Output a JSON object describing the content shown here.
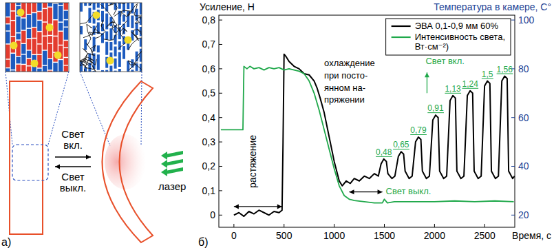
{
  "chart_data": {
    "type": "line",
    "panel_label": "б)",
    "y_label": "Усиление, Н",
    "y2_label": "Температура в камере, С°",
    "x_label": "Время, с",
    "xlim": [
      -150,
      2800
    ],
    "xticks": [
      0,
      500,
      1000,
      1500,
      2000,
      2500
    ],
    "ylim": [
      -0.05,
      0.82
    ],
    "yticks": [
      0,
      {
        "value": 0.1,
        "label": "0,1"
      },
      {
        "value": 0.2,
        "label": "0,2"
      },
      {
        "value": 0.3,
        "label": "0,3"
      },
      {
        "value": 0.4,
        "label": "0,4"
      },
      {
        "value": 0.5,
        "label": "0,5"
      },
      {
        "value": 0.6,
        "label": "0,6"
      },
      {
        "value": 0.7,
        "label": "0,7"
      },
      {
        "value": 0.8,
        "label": "0,8"
      }
    ],
    "y2lim": [
      15,
      102
    ],
    "y2ticks": [
      20,
      40,
      60,
      80,
      100
    ],
    "legend": "top-right",
    "series": [
      {
        "name": "ЭВА 0,1-0,9 мм 60%",
        "color": "#000000",
        "x": [
          0,
          50,
          100,
          150,
          200,
          250,
          300,
          350,
          400,
          450,
          480,
          490,
          500,
          520,
          550,
          600,
          650,
          700,
          750,
          800,
          830,
          860,
          900,
          950,
          1000,
          1050,
          1080,
          1120,
          1160,
          1200,
          1250,
          1300,
          1350,
          1400,
          1440,
          1467,
          1495,
          1520,
          1535,
          1575,
          1605,
          1639,
          1667,
          1692,
          1707,
          1747,
          1777,
          1811,
          1839,
          1864,
          1879,
          1919,
          1949,
          1983,
          2011,
          2036,
          2051,
          2091,
          2121,
          2155,
          2183,
          2208,
          2223,
          2263,
          2293,
          2327,
          2355,
          2380,
          2395,
          2435,
          2465,
          2499,
          2527,
          2552,
          2567,
          2607,
          2637,
          2671,
          2699,
          2724,
          2739,
          2779,
          2798
        ],
        "values": [
          0.0,
          0.01,
          -0.005,
          0.015,
          0.005,
          0.02,
          0.01,
          0.0,
          0.015,
          0.01,
          0.02,
          0.3,
          0.66,
          0.65,
          0.63,
          0.61,
          0.6,
          0.58,
          0.575,
          0.55,
          0.52,
          0.48,
          0.42,
          0.32,
          0.22,
          0.14,
          0.12,
          0.14,
          0.13,
          0.15,
          0.14,
          0.16,
          0.15,
          0.17,
          0.16,
          0.21,
          0.23,
          0.22,
          0.17,
          0.15,
          0.16,
          0.24,
          0.26,
          0.25,
          0.18,
          0.15,
          0.16,
          0.3,
          0.32,
          0.31,
          0.18,
          0.15,
          0.16,
          0.39,
          0.41,
          0.4,
          0.18,
          0.15,
          0.16,
          0.47,
          0.49,
          0.48,
          0.18,
          0.15,
          0.16,
          0.49,
          0.51,
          0.5,
          0.18,
          0.15,
          0.16,
          0.53,
          0.55,
          0.54,
          0.18,
          0.15,
          0.16,
          0.55,
          0.57,
          0.56,
          0.18,
          0.15,
          0.16
        ]
      },
      {
        "name": "Интенсивность света, Вт·см⁻²)",
        "color": "#1fa84a",
        "axis": "y2",
        "x": [
          -130,
          90,
          100,
          130,
          160,
          200,
          250,
          300,
          350,
          400,
          450,
          500,
          550,
          600,
          650,
          700,
          750,
          800,
          850,
          900,
          950,
          1000,
          1050,
          1100,
          1150,
          1200,
          1300,
          1400,
          1480,
          1500,
          1530,
          1600,
          1800,
          2000,
          2200,
          2400,
          2600,
          2790
        ],
        "values": [
          55,
          55,
          81,
          80,
          81,
          80,
          80.5,
          79.5,
          80.5,
          80,
          80.5,
          79.5,
          80,
          79.5,
          79,
          78,
          75,
          70,
          63,
          55,
          47,
          39,
          32,
          28,
          26.5,
          26,
          25.5,
          25,
          25,
          26.5,
          25,
          25.5,
          25.5,
          25.5,
          25.8,
          25.5,
          25.8,
          25.5
        ]
      }
    ],
    "annotations": {
      "stretch": "растяжение",
      "cooling": [
        "охлаждение",
        "при посто-",
        "янном на-",
        "пряжении"
      ],
      "light_on": "Свет вкл.",
      "light_off": "Свет выкл."
    },
    "light_pulses": {
      "color": "#1fa84a",
      "x": [
        1495,
        1667,
        1839,
        2011,
        2183,
        2355,
        2527,
        2699
      ],
      "values": [
        0.48,
        0.65,
        0.79,
        0.91,
        1.13,
        1.24,
        1.5,
        1.56
      ],
      "value_labels": [
        "0,48",
        "0,65",
        "0,79",
        "0,91",
        "1,13",
        "1,24",
        "1,5",
        "1,56"
      ]
    }
  },
  "diagram": {
    "panel_label": "а)",
    "light_on": "Свет вкл.",
    "light_off": "Свет выкл.",
    "laser": "лазер"
  }
}
